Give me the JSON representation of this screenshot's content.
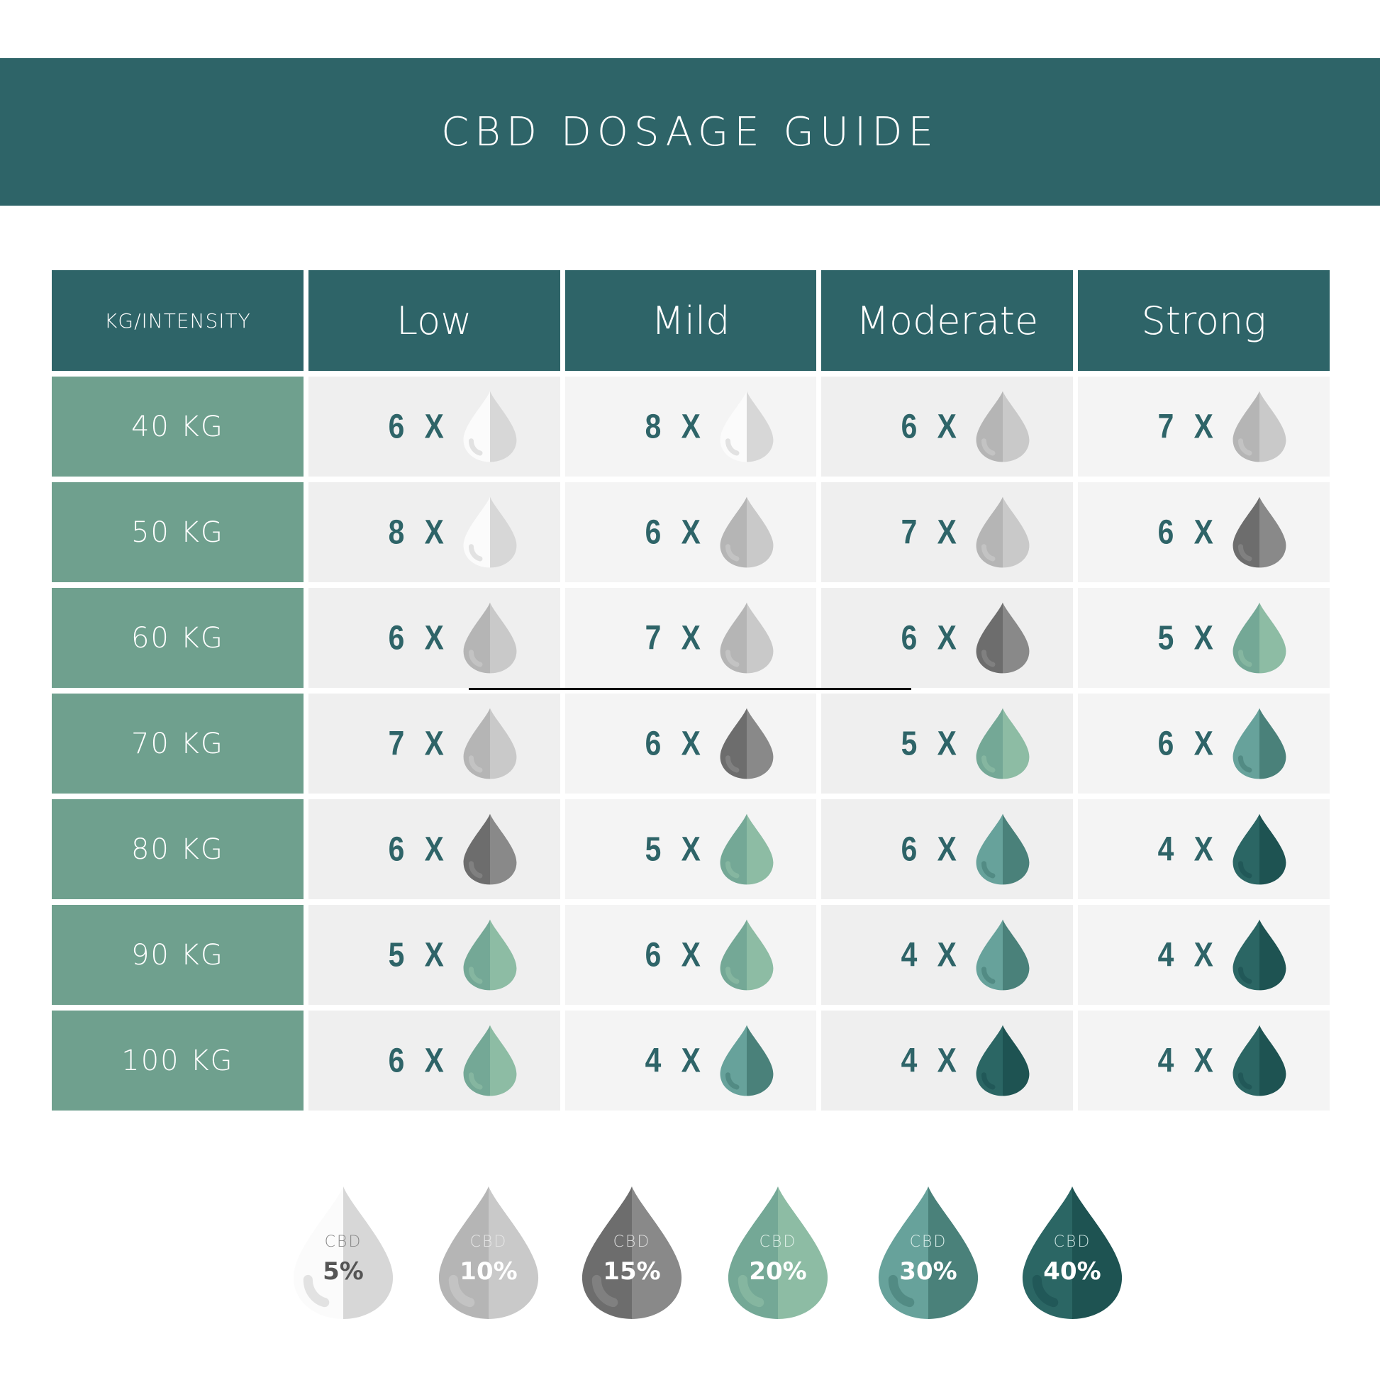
{
  "title": "CBD DOSAGE GUIDE",
  "table": {
    "headers": [
      "KG/INTENSITY",
      "Low",
      "Mild",
      "Moderate",
      "Strong"
    ],
    "rows": [
      {
        "weight": "40 KG",
        "cells": [
          {
            "dose": "6 X",
            "level": "5%"
          },
          {
            "dose": "8 X",
            "level": "5%"
          },
          {
            "dose": "6 X",
            "level": "10%"
          },
          {
            "dose": "7 X",
            "level": "10%"
          }
        ]
      },
      {
        "weight": "50 KG",
        "cells": [
          {
            "dose": "8 X",
            "level": "5%"
          },
          {
            "dose": "6 X",
            "level": "10%"
          },
          {
            "dose": "7 X",
            "level": "10%"
          },
          {
            "dose": "6 X",
            "level": "15%"
          }
        ]
      },
      {
        "weight": "60 KG",
        "cells": [
          {
            "dose": "6 X",
            "level": "10%"
          },
          {
            "dose": "7 X",
            "level": "10%"
          },
          {
            "dose": "6 X",
            "level": "15%"
          },
          {
            "dose": "5 X",
            "level": "20%"
          }
        ]
      },
      {
        "weight": "70 KG",
        "cells": [
          {
            "dose": "7 X",
            "level": "10%"
          },
          {
            "dose": "6 X",
            "level": "15%"
          },
          {
            "dose": "5 X",
            "level": "20%"
          },
          {
            "dose": "6 X",
            "level": "30%"
          }
        ]
      },
      {
        "weight": "80 KG",
        "cells": [
          {
            "dose": "6 X",
            "level": "15%"
          },
          {
            "dose": "5 X",
            "level": "20%"
          },
          {
            "dose": "6 X",
            "level": "30%"
          },
          {
            "dose": "4 X",
            "level": "40%"
          }
        ]
      },
      {
        "weight": "90 KG",
        "cells": [
          {
            "dose": "5 X",
            "level": "20%"
          },
          {
            "dose": "6 X",
            "level": "20%"
          },
          {
            "dose": "4 X",
            "level": "30%"
          },
          {
            "dose": "4 X",
            "level": "40%"
          }
        ]
      },
      {
        "weight": "100 KG",
        "cells": [
          {
            "dose": "6 X",
            "level": "20%"
          },
          {
            "dose": "4 X",
            "level": "30%"
          },
          {
            "dose": "4 X",
            "level": "40%"
          },
          {
            "dose": "4 X",
            "level": "40%"
          }
        ]
      }
    ]
  },
  "legend": [
    {
      "label": "CBD",
      "value": "5%",
      "left": "#fbfbfb",
      "right": "#d7d7d7",
      "text": "#555555",
      "sub": "#8a8a8a"
    },
    {
      "label": "CBD",
      "value": "10%",
      "left": "#b5b5b5",
      "right": "#c9c9c9",
      "text": "#ffffff",
      "sub": "#e6e6e6"
    },
    {
      "label": "CBD",
      "value": "15%",
      "left": "#6d6d6d",
      "right": "#898989",
      "text": "#ffffff",
      "sub": "#dddddd"
    },
    {
      "label": "CBD",
      "value": "20%",
      "left": "#74a896",
      "right": "#8dbca4",
      "text": "#ffffff",
      "sub": "#dff0e8"
    },
    {
      "label": "CBD",
      "value": "30%",
      "left": "#67a29b",
      "right": "#4a817a",
      "text": "#ffffff",
      "sub": "#d8ece8"
    },
    {
      "label": "CBD",
      "value": "40%",
      "left": "#2b6664",
      "right": "#1e5352",
      "text": "#ffffff",
      "sub": "#c8e0de"
    }
  ],
  "colors": {
    "header": "#2e6468",
    "weight_column": "#6fa08e",
    "cell_a": "#efefef",
    "cell_b": "#f4f4f4",
    "dose_text": "#2e6468"
  }
}
